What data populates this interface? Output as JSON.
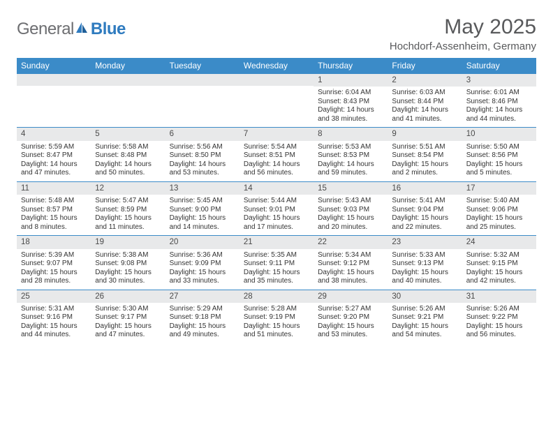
{
  "brand": {
    "part1": "General",
    "part2": "Blue"
  },
  "title": "May 2025",
  "location": "Hochdorf-Assenheim, Germany",
  "colors": {
    "header_bg": "#3b8bc8",
    "band_bg": "#e8e9ea",
    "rule": "#3b8bc8",
    "brand_grey": "#6d6e71",
    "brand_blue": "#2f7bbf",
    "text": "#333333",
    "title_grey": "#58595b"
  },
  "weekdays": [
    "Sunday",
    "Monday",
    "Tuesday",
    "Wednesday",
    "Thursday",
    "Friday",
    "Saturday"
  ],
  "weeks": [
    [
      {
        "n": "",
        "sr": "",
        "ss": "",
        "dl": ""
      },
      {
        "n": "",
        "sr": "",
        "ss": "",
        "dl": ""
      },
      {
        "n": "",
        "sr": "",
        "ss": "",
        "dl": ""
      },
      {
        "n": "",
        "sr": "",
        "ss": "",
        "dl": ""
      },
      {
        "n": "1",
        "sr": "Sunrise: 6:04 AM",
        "ss": "Sunset: 8:43 PM",
        "dl": "Daylight: 14 hours and 38 minutes."
      },
      {
        "n": "2",
        "sr": "Sunrise: 6:03 AM",
        "ss": "Sunset: 8:44 PM",
        "dl": "Daylight: 14 hours and 41 minutes."
      },
      {
        "n": "3",
        "sr": "Sunrise: 6:01 AM",
        "ss": "Sunset: 8:46 PM",
        "dl": "Daylight: 14 hours and 44 minutes."
      }
    ],
    [
      {
        "n": "4",
        "sr": "Sunrise: 5:59 AM",
        "ss": "Sunset: 8:47 PM",
        "dl": "Daylight: 14 hours and 47 minutes."
      },
      {
        "n": "5",
        "sr": "Sunrise: 5:58 AM",
        "ss": "Sunset: 8:48 PM",
        "dl": "Daylight: 14 hours and 50 minutes."
      },
      {
        "n": "6",
        "sr": "Sunrise: 5:56 AM",
        "ss": "Sunset: 8:50 PM",
        "dl": "Daylight: 14 hours and 53 minutes."
      },
      {
        "n": "7",
        "sr": "Sunrise: 5:54 AM",
        "ss": "Sunset: 8:51 PM",
        "dl": "Daylight: 14 hours and 56 minutes."
      },
      {
        "n": "8",
        "sr": "Sunrise: 5:53 AM",
        "ss": "Sunset: 8:53 PM",
        "dl": "Daylight: 14 hours and 59 minutes."
      },
      {
        "n": "9",
        "sr": "Sunrise: 5:51 AM",
        "ss": "Sunset: 8:54 PM",
        "dl": "Daylight: 15 hours and 2 minutes."
      },
      {
        "n": "10",
        "sr": "Sunrise: 5:50 AM",
        "ss": "Sunset: 8:56 PM",
        "dl": "Daylight: 15 hours and 5 minutes."
      }
    ],
    [
      {
        "n": "11",
        "sr": "Sunrise: 5:48 AM",
        "ss": "Sunset: 8:57 PM",
        "dl": "Daylight: 15 hours and 8 minutes."
      },
      {
        "n": "12",
        "sr": "Sunrise: 5:47 AM",
        "ss": "Sunset: 8:59 PM",
        "dl": "Daylight: 15 hours and 11 minutes."
      },
      {
        "n": "13",
        "sr": "Sunrise: 5:45 AM",
        "ss": "Sunset: 9:00 PM",
        "dl": "Daylight: 15 hours and 14 minutes."
      },
      {
        "n": "14",
        "sr": "Sunrise: 5:44 AM",
        "ss": "Sunset: 9:01 PM",
        "dl": "Daylight: 15 hours and 17 minutes."
      },
      {
        "n": "15",
        "sr": "Sunrise: 5:43 AM",
        "ss": "Sunset: 9:03 PM",
        "dl": "Daylight: 15 hours and 20 minutes."
      },
      {
        "n": "16",
        "sr": "Sunrise: 5:41 AM",
        "ss": "Sunset: 9:04 PM",
        "dl": "Daylight: 15 hours and 22 minutes."
      },
      {
        "n": "17",
        "sr": "Sunrise: 5:40 AM",
        "ss": "Sunset: 9:06 PM",
        "dl": "Daylight: 15 hours and 25 minutes."
      }
    ],
    [
      {
        "n": "18",
        "sr": "Sunrise: 5:39 AM",
        "ss": "Sunset: 9:07 PM",
        "dl": "Daylight: 15 hours and 28 minutes."
      },
      {
        "n": "19",
        "sr": "Sunrise: 5:38 AM",
        "ss": "Sunset: 9:08 PM",
        "dl": "Daylight: 15 hours and 30 minutes."
      },
      {
        "n": "20",
        "sr": "Sunrise: 5:36 AM",
        "ss": "Sunset: 9:09 PM",
        "dl": "Daylight: 15 hours and 33 minutes."
      },
      {
        "n": "21",
        "sr": "Sunrise: 5:35 AM",
        "ss": "Sunset: 9:11 PM",
        "dl": "Daylight: 15 hours and 35 minutes."
      },
      {
        "n": "22",
        "sr": "Sunrise: 5:34 AM",
        "ss": "Sunset: 9:12 PM",
        "dl": "Daylight: 15 hours and 38 minutes."
      },
      {
        "n": "23",
        "sr": "Sunrise: 5:33 AM",
        "ss": "Sunset: 9:13 PM",
        "dl": "Daylight: 15 hours and 40 minutes."
      },
      {
        "n": "24",
        "sr": "Sunrise: 5:32 AM",
        "ss": "Sunset: 9:15 PM",
        "dl": "Daylight: 15 hours and 42 minutes."
      }
    ],
    [
      {
        "n": "25",
        "sr": "Sunrise: 5:31 AM",
        "ss": "Sunset: 9:16 PM",
        "dl": "Daylight: 15 hours and 44 minutes."
      },
      {
        "n": "26",
        "sr": "Sunrise: 5:30 AM",
        "ss": "Sunset: 9:17 PM",
        "dl": "Daylight: 15 hours and 47 minutes."
      },
      {
        "n": "27",
        "sr": "Sunrise: 5:29 AM",
        "ss": "Sunset: 9:18 PM",
        "dl": "Daylight: 15 hours and 49 minutes."
      },
      {
        "n": "28",
        "sr": "Sunrise: 5:28 AM",
        "ss": "Sunset: 9:19 PM",
        "dl": "Daylight: 15 hours and 51 minutes."
      },
      {
        "n": "29",
        "sr": "Sunrise: 5:27 AM",
        "ss": "Sunset: 9:20 PM",
        "dl": "Daylight: 15 hours and 53 minutes."
      },
      {
        "n": "30",
        "sr": "Sunrise: 5:26 AM",
        "ss": "Sunset: 9:21 PM",
        "dl": "Daylight: 15 hours and 54 minutes."
      },
      {
        "n": "31",
        "sr": "Sunrise: 5:26 AM",
        "ss": "Sunset: 9:22 PM",
        "dl": "Daylight: 15 hours and 56 minutes."
      }
    ]
  ]
}
